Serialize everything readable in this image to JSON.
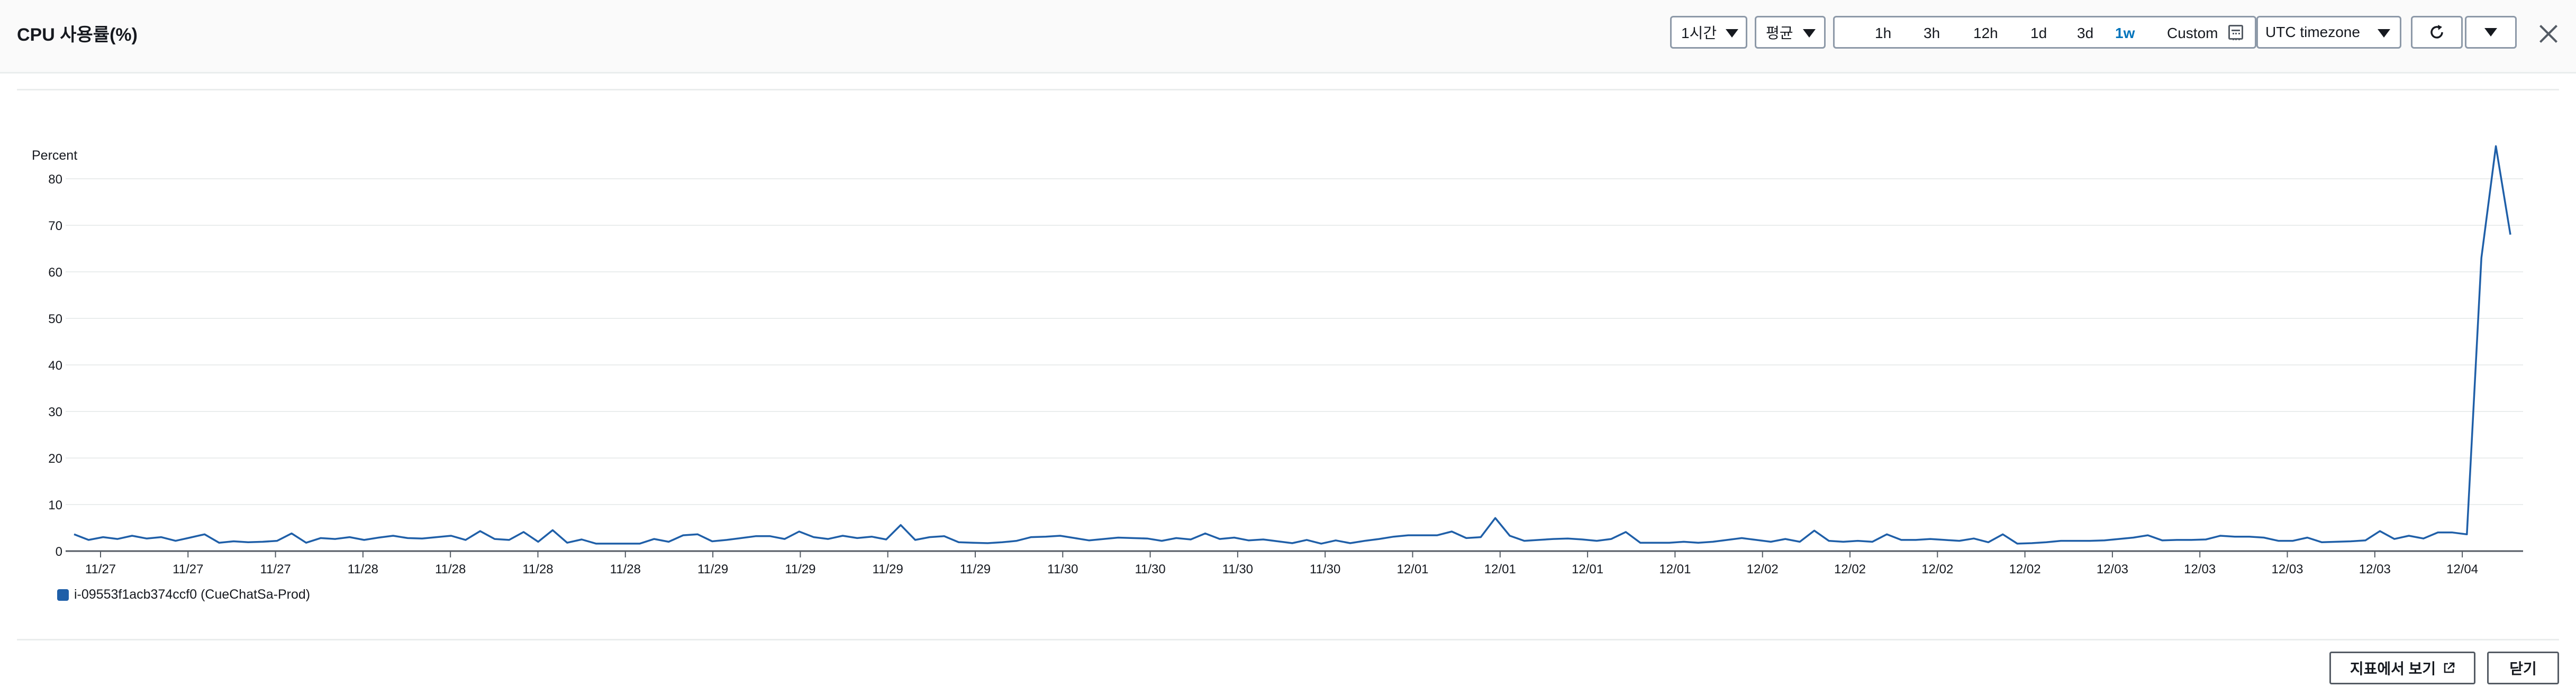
{
  "header": {
    "title": "CPU 사용률(%)",
    "period_select": "1시간",
    "statistic_select": "평균",
    "time_ranges": [
      "1h",
      "3h",
      "12h",
      "1d",
      "3d",
      "1w"
    ],
    "active_range": "1w",
    "custom_label": "Custom",
    "timezone_select": "UTC timezone"
  },
  "footer": {
    "view_in_metrics": "지표에서 보기",
    "close": "닫기"
  },
  "icons": [
    "calendar-icon",
    "refresh-icon",
    "caret-down-icon",
    "close-icon",
    "external-link-icon"
  ],
  "colors": {
    "series": "#1f5fa8",
    "active_range": "#0073bb"
  },
  "chart_data": {
    "type": "line",
    "ylabel": "Percent",
    "ylim": [
      0,
      90
    ],
    "yticks": [
      0,
      10,
      20,
      30,
      40,
      50,
      60,
      70,
      80
    ],
    "xticks": [
      "11/27",
      "11/27",
      "11/27",
      "11/28",
      "11/28",
      "11/28",
      "11/28",
      "11/29",
      "11/29",
      "11/29",
      "11/29",
      "11/30",
      "11/30",
      "11/30",
      "11/30",
      "12/01",
      "12/01",
      "12/01",
      "12/01",
      "12/02",
      "12/02",
      "12/02",
      "12/02",
      "12/03",
      "12/03",
      "12/03",
      "12/03",
      "12/04"
    ],
    "grid": true,
    "legend_position": "bottom-left",
    "series": [
      {
        "name": "i-09553f1acb374ccf0 (CueChatSa-Prod)",
        "values": [
          3.6,
          2.4,
          3.0,
          2.6,
          3.3,
          2.7,
          3.0,
          2.2,
          2.9,
          3.6,
          1.8,
          2.1,
          1.9,
          2.0,
          2.2,
          3.8,
          1.8,
          2.8,
          2.6,
          3.0,
          2.4,
          2.9,
          3.3,
          2.8,
          2.7,
          3.0,
          3.3,
          2.4,
          4.3,
          2.6,
          2.4,
          4.1,
          2.0,
          4.5,
          1.8,
          2.5,
          1.6,
          1.6,
          1.6,
          1.6,
          2.6,
          2.0,
          3.4,
          3.6,
          2.1,
          2.4,
          2.8,
          3.2,
          3.2,
          2.6,
          4.2,
          3.0,
          2.6,
          3.3,
          2.8,
          3.1,
          2.5,
          5.6,
          2.4,
          3.0,
          3.2,
          1.9,
          1.8,
          1.7,
          1.9,
          2.2,
          3.0,
          3.1,
          3.3,
          2.8,
          2.3,
          2.6,
          2.9,
          2.8,
          2.7,
          2.2,
          2.8,
          2.5,
          3.8,
          2.6,
          2.9,
          2.3,
          2.5,
          2.1,
          1.7,
          2.4,
          1.6,
          2.3,
          1.7,
          2.2,
          2.6,
          3.1,
          3.4,
          3.4,
          3.4,
          4.2,
          2.8,
          3.0,
          7.1,
          3.3,
          2.2,
          2.4,
          2.6,
          2.7,
          2.5,
          2.2,
          2.6,
          4.1,
          1.8,
          1.8,
          1.8,
          2.0,
          1.8,
          2.0,
          2.4,
          2.8,
          2.4,
          2.0,
          2.6,
          2.0,
          4.4,
          2.2,
          2.0,
          2.2,
          2.0,
          3.6,
          2.4,
          2.4,
          2.6,
          2.4,
          2.2,
          2.7,
          1.9,
          3.6,
          1.6,
          1.7,
          1.9,
          2.2,
          2.2,
          2.2,
          2.3,
          2.6,
          2.9,
          3.4,
          2.3,
          2.4,
          2.4,
          2.5,
          3.3,
          3.1,
          3.1,
          2.9,
          2.2,
          2.2,
          2.9,
          1.9,
          2.0,
          2.1,
          2.3,
          4.3,
          2.6,
          3.3,
          2.7,
          4.0,
          4.0,
          3.6,
          63,
          87,
          68
        ]
      }
    ]
  }
}
